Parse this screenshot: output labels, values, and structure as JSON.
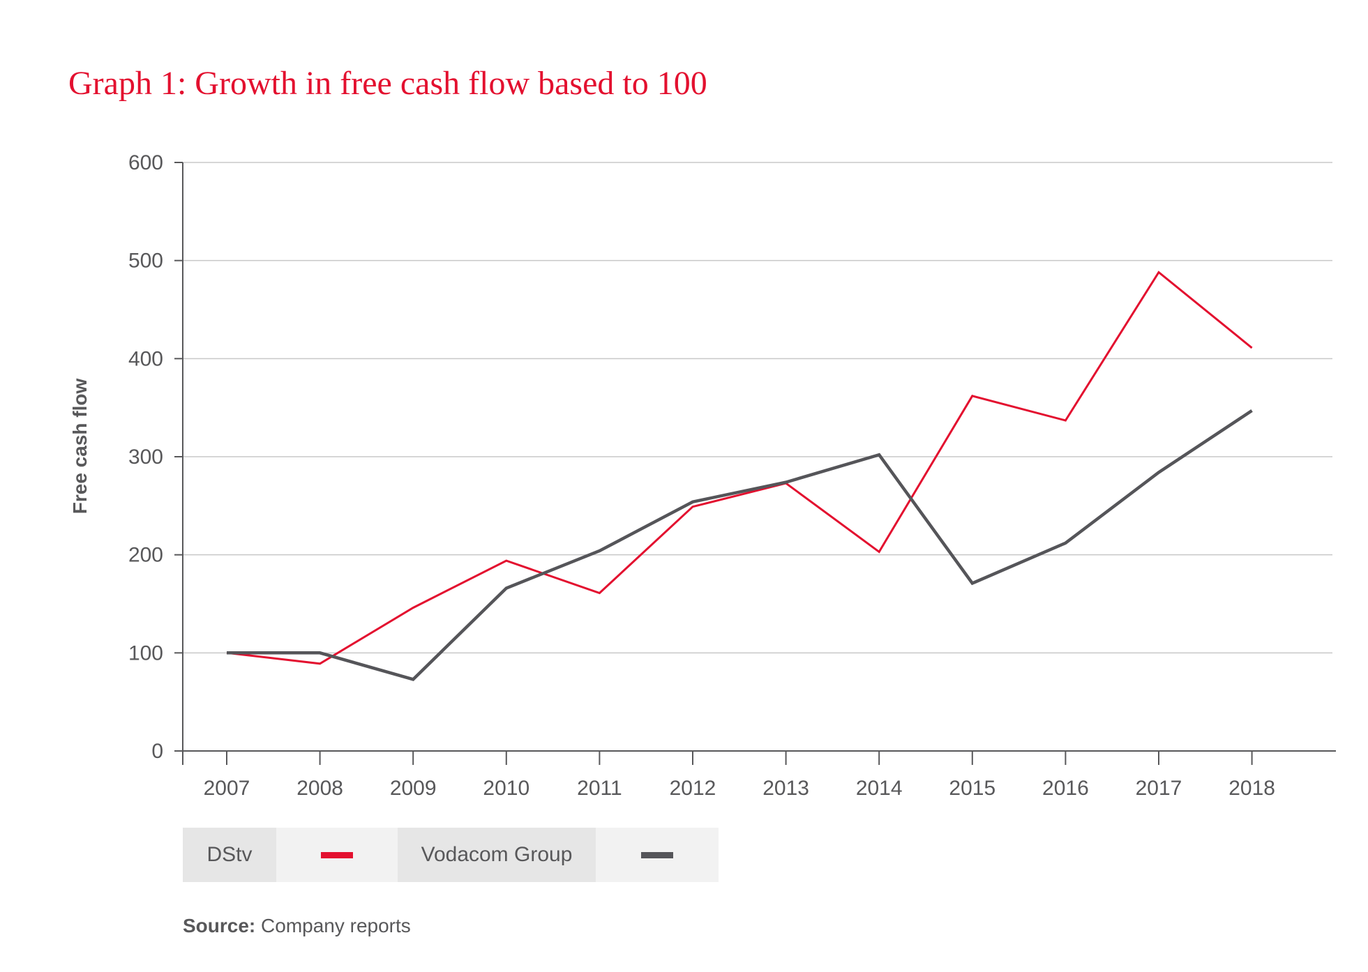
{
  "chart_data": {
    "type": "line",
    "title": "Graph 1: Growth in free cash flow based to 100",
    "xlabel": "",
    "ylabel": "Free cash flow",
    "categories": [
      "2007",
      "2008",
      "2009",
      "2010",
      "2011",
      "2012",
      "2013",
      "2014",
      "2015",
      "2016",
      "2017",
      "2018"
    ],
    "ylim": [
      0,
      600
    ],
    "yticks": [
      0,
      100,
      200,
      300,
      400,
      500,
      600
    ],
    "grid": true,
    "legend_position": "bottom-left",
    "series": [
      {
        "name": "DStv",
        "color": "#e3102f",
        "values": [
          100,
          89,
          146,
          194,
          161,
          249,
          273,
          203,
          362,
          337,
          488,
          411
        ]
      },
      {
        "name": "Vodacom Group",
        "color": "#555559",
        "values": [
          100,
          100,
          73,
          166,
          204,
          254,
          274,
          302,
          171,
          212,
          284,
          347
        ]
      }
    ]
  },
  "source": {
    "label": "Source:",
    "text": "Company reports"
  }
}
